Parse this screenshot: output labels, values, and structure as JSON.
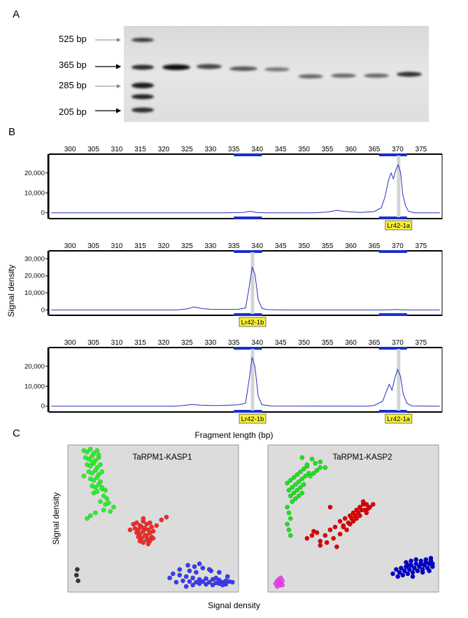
{
  "panel_a": {
    "letter": "A",
    "ladder_labels": [
      "525 bp",
      "365 bp",
      "285 bp",
      "205 bp"
    ]
  },
  "panel_b": {
    "letter": "B",
    "ylabel": "Signal density",
    "xlabel": "Fragment length (bp)",
    "peak_labels": {
      "a": "Lr42-1a",
      "b": "Lr42-1b"
    }
  },
  "panel_c": {
    "letter": "C",
    "ylabel": "Signal density",
    "xlabel": "Signal density",
    "plot1_title": "TaRPM1-KASP1",
    "plot2_title": "TaRPM1-KASP2"
  },
  "chart_data": [
    {
      "type": "line",
      "x_ticks": [
        300,
        305,
        310,
        315,
        320,
        325,
        330,
        335,
        340,
        345,
        350,
        355,
        360,
        365,
        370,
        375
      ],
      "xlim": [
        295.5,
        379.5
      ],
      "y_ticks": [
        0,
        10000,
        20000
      ],
      "y_tick_labels": [
        "0",
        "10,000",
        "20,000"
      ],
      "ylim": [
        -1500,
        28000
      ],
      "bins": [
        [
          335,
          341
        ],
        [
          366,
          372
        ]
      ],
      "highlight_x": [
        370.2
      ],
      "peak_label": "Lr42-1a",
      "peak_label_x": 370.2,
      "trace": [
        [
          296,
          0
        ],
        [
          333,
          0
        ],
        [
          337,
          150
        ],
        [
          338.5,
          800
        ],
        [
          340,
          150
        ],
        [
          342,
          0
        ],
        [
          352,
          0
        ],
        [
          355,
          400
        ],
        [
          357,
          1200
        ],
        [
          359,
          600
        ],
        [
          362,
          200
        ],
        [
          365,
          600
        ],
        [
          366.5,
          2500
        ],
        [
          367.3,
          8000
        ],
        [
          368,
          16000
        ],
        [
          368.6,
          20000
        ],
        [
          369.1,
          17000
        ],
        [
          369.6,
          21500
        ],
        [
          370.1,
          24000
        ],
        [
          370.6,
          20500
        ],
        [
          371.1,
          9000
        ],
        [
          371.7,
          3500
        ],
        [
          372.3,
          800
        ],
        [
          373.5,
          0
        ],
        [
          379,
          0
        ]
      ]
    },
    {
      "type": "line",
      "x_ticks": [
        300,
        305,
        310,
        315,
        320,
        325,
        330,
        335,
        340,
        345,
        350,
        355,
        360,
        365,
        370,
        375
      ],
      "xlim": [
        295.5,
        379.5
      ],
      "y_ticks": [
        0,
        10000,
        20000,
        30000
      ],
      "y_tick_labels": [
        "0",
        "10,000",
        "20,000",
        "30,000"
      ],
      "ylim": [
        -1500,
        33000
      ],
      "bins": [
        [
          335,
          341
        ],
        [
          366,
          372
        ]
      ],
      "highlight_x": [
        339
      ],
      "peak_label": "Lr42-1b",
      "peak_label_x": 339,
      "trace": [
        [
          296,
          0
        ],
        [
          323,
          0
        ],
        [
          325,
          600
        ],
        [
          326.5,
          1800
        ],
        [
          328,
          900
        ],
        [
          330,
          400
        ],
        [
          333,
          300
        ],
        [
          336,
          400
        ],
        [
          337.5,
          1200
        ],
        [
          338.2,
          12000
        ],
        [
          338.9,
          25000
        ],
        [
          339.5,
          21000
        ],
        [
          340.2,
          6000
        ],
        [
          341,
          1000
        ],
        [
          342,
          200
        ],
        [
          345,
          0
        ],
        [
          368,
          0
        ],
        [
          369.5,
          300
        ],
        [
          371,
          0
        ],
        [
          379,
          0
        ]
      ]
    },
    {
      "type": "line",
      "x_ticks": [
        300,
        305,
        310,
        315,
        320,
        325,
        330,
        335,
        340,
        345,
        350,
        355,
        360,
        365,
        370,
        375
      ],
      "xlim": [
        295.5,
        379.5
      ],
      "y_ticks": [
        0,
        10000,
        20000
      ],
      "y_tick_labels": [
        "0",
        "10,000",
        "20,000"
      ],
      "ylim": [
        -1500,
        28000
      ],
      "bins": [
        [
          335,
          341
        ],
        [
          366,
          372
        ]
      ],
      "highlight_x": [
        339,
        370.2
      ],
      "peak_labels": [
        "Lr42-1b",
        "Lr42-1a"
      ],
      "peak_label_xs": [
        339,
        370.2
      ],
      "trace": [
        [
          296,
          0
        ],
        [
          322,
          0
        ],
        [
          324,
          300
        ],
        [
          326,
          900
        ],
        [
          328,
          500
        ],
        [
          331,
          300
        ],
        [
          334,
          500
        ],
        [
          336,
          700
        ],
        [
          337.5,
          1500
        ],
        [
          338.3,
          14000
        ],
        [
          338.9,
          24500
        ],
        [
          339.5,
          20000
        ],
        [
          340.2,
          5000
        ],
        [
          341,
          800
        ],
        [
          343,
          100
        ],
        [
          363,
          0
        ],
        [
          365,
          400
        ],
        [
          366.8,
          2500
        ],
        [
          367.6,
          7500
        ],
        [
          368.2,
          11000
        ],
        [
          368.8,
          8000
        ],
        [
          369.4,
          14000
        ],
        [
          370,
          18500
        ],
        [
          370.6,
          15000
        ],
        [
          371.2,
          6000
        ],
        [
          372,
          1500
        ],
        [
          373,
          200
        ],
        [
          379,
          0
        ]
      ]
    },
    {
      "type": "scatter",
      "title": "TaRPM1-KASP1",
      "xlim": [
        0,
        1
      ],
      "ylim": [
        0,
        1
      ],
      "series": [
        {
          "color": "#2cee2c",
          "x": [
            0.08,
            0.1,
            0.12,
            0.14,
            0.16,
            0.09,
            0.11,
            0.13,
            0.15,
            0.17,
            0.1,
            0.12,
            0.14,
            0.16,
            0.18,
            0.11,
            0.13,
            0.15,
            0.17,
            0.19,
            0.12,
            0.14,
            0.16,
            0.18,
            0.13,
            0.15,
            0.17,
            0.19,
            0.14,
            0.16,
            0.2,
            0.22,
            0.18,
            0.21,
            0.23,
            0.26,
            0.2,
            0.24,
            0.12,
            0.15,
            0.1,
            0.08,
            0.13,
            0.17,
            0.19,
            0.21
          ],
          "y": [
            0.98,
            0.97,
            0.99,
            0.96,
            0.98,
            0.93,
            0.92,
            0.94,
            0.91,
            0.93,
            0.88,
            0.87,
            0.89,
            0.86,
            0.88,
            0.83,
            0.82,
            0.84,
            0.81,
            0.83,
            0.78,
            0.77,
            0.79,
            0.76,
            0.73,
            0.72,
            0.74,
            0.71,
            0.68,
            0.69,
            0.66,
            0.64,
            0.62,
            0.6,
            0.61,
            0.58,
            0.56,
            0.55,
            0.52,
            0.54,
            0.5,
            0.8,
            0.9,
            0.95,
            0.72,
            0.7
          ]
        },
        {
          "color": "#ee2c2c",
          "x": [
            0.38,
            0.4,
            0.42,
            0.44,
            0.46,
            0.48,
            0.39,
            0.41,
            0.43,
            0.45,
            0.47,
            0.49,
            0.4,
            0.42,
            0.44,
            0.46,
            0.48,
            0.5,
            0.41,
            0.43,
            0.45,
            0.47,
            0.49,
            0.42,
            0.44,
            0.46,
            0.48,
            0.52,
            0.55,
            0.58,
            0.36,
            0.44,
            0.47,
            0.5
          ],
          "y": [
            0.46,
            0.47,
            0.45,
            0.48,
            0.46,
            0.47,
            0.43,
            0.42,
            0.44,
            0.43,
            0.42,
            0.44,
            0.4,
            0.39,
            0.41,
            0.38,
            0.4,
            0.41,
            0.37,
            0.36,
            0.38,
            0.35,
            0.37,
            0.34,
            0.33,
            0.35,
            0.34,
            0.45,
            0.49,
            0.51,
            0.42,
            0.5,
            0.32,
            0.36
          ]
        },
        {
          "color": "#3a3aee",
          "x": [
            0.62,
            0.66,
            0.7,
            0.74,
            0.78,
            0.82,
            0.86,
            0.9,
            0.94,
            0.68,
            0.72,
            0.76,
            0.8,
            0.84,
            0.88,
            0.92,
            0.96,
            0.7,
            0.74,
            0.78,
            0.82,
            0.86,
            0.9,
            0.94,
            0.75,
            0.8,
            0.85,
            0.9,
            0.6,
            0.64,
            0.72,
            0.95,
            0.98,
            0.71,
            0.78,
            0.84,
            0.88,
            0.92,
            0.66,
            0.76
          ],
          "y": [
            0.11,
            0.1,
            0.09,
            0.08,
            0.07,
            0.075,
            0.07,
            0.065,
            0.06,
            0.06,
            0.055,
            0.05,
            0.055,
            0.05,
            0.045,
            0.05,
            0.055,
            0.02,
            0.03,
            0.04,
            0.035,
            0.03,
            0.04,
            0.035,
            0.16,
            0.15,
            0.13,
            0.12,
            0.08,
            0.05,
            0.13,
            0.09,
            0.05,
            0.17,
            0.18,
            0.14,
            0.08,
            0.03,
            0.14,
            0.12
          ]
        },
        {
          "color": "#333333",
          "x": [
            0.04,
            0.035,
            0.045
          ],
          "y": [
            0.14,
            0.1,
            0.06
          ]
        }
      ]
    },
    {
      "type": "scatter",
      "title": "TaRPM1-KASP2",
      "xlim": [
        0,
        1
      ],
      "ylim": [
        0,
        1
      ],
      "series": [
        {
          "color": "#22dd22",
          "x": [
            0.1,
            0.12,
            0.14,
            0.16,
            0.18,
            0.2,
            0.22,
            0.11,
            0.13,
            0.15,
            0.17,
            0.19,
            0.21,
            0.23,
            0.12,
            0.14,
            0.16,
            0.18,
            0.2,
            0.24,
            0.26,
            0.28,
            0.3,
            0.13,
            0.15,
            0.17,
            0.19,
            0.1,
            0.11,
            0.12,
            0.1,
            0.11,
            0.12,
            0.27,
            0.33,
            0.3,
            0.25,
            0.22,
            0.19
          ],
          "y": [
            0.75,
            0.77,
            0.79,
            0.81,
            0.83,
            0.85,
            0.87,
            0.7,
            0.72,
            0.74,
            0.76,
            0.78,
            0.8,
            0.82,
            0.66,
            0.68,
            0.7,
            0.72,
            0.74,
            0.8,
            0.82,
            0.84,
            0.86,
            0.62,
            0.64,
            0.66,
            0.68,
            0.58,
            0.54,
            0.5,
            0.46,
            0.42,
            0.38,
            0.89,
            0.86,
            0.9,
            0.92,
            0.88,
            0.93
          ]
        },
        {
          "color": "#dd0000",
          "x": [
            0.22,
            0.25,
            0.28,
            0.3,
            0.33,
            0.36,
            0.39,
            0.42,
            0.45,
            0.48,
            0.5,
            0.52,
            0.54,
            0.56,
            0.58,
            0.6,
            0.62,
            0.44,
            0.47,
            0.49,
            0.51,
            0.53,
            0.55,
            0.57,
            0.59,
            0.46,
            0.48,
            0.5,
            0.52,
            0.54,
            0.34,
            0.38,
            0.4,
            0.26,
            0.3,
            0.42,
            0.44,
            0.36,
            0.56,
            0.58
          ],
          "y": [
            0.36,
            0.38,
            0.4,
            0.34,
            0.38,
            0.42,
            0.44,
            0.48,
            0.5,
            0.52,
            0.54,
            0.56,
            0.58,
            0.6,
            0.6,
            0.58,
            0.6,
            0.45,
            0.47,
            0.5,
            0.52,
            0.54,
            0.56,
            0.56,
            0.57,
            0.42,
            0.46,
            0.48,
            0.5,
            0.52,
            0.33,
            0.36,
            0.3,
            0.41,
            0.31,
            0.39,
            0.44,
            0.58,
            0.62,
            0.54
          ]
        },
        {
          "color": "#0000cc",
          "x": [
            0.76,
            0.79,
            0.82,
            0.85,
            0.88,
            0.91,
            0.94,
            0.97,
            0.78,
            0.81,
            0.84,
            0.87,
            0.9,
            0.93,
            0.96,
            0.8,
            0.83,
            0.86,
            0.89,
            0.92,
            0.95,
            0.98,
            0.82,
            0.85,
            0.88,
            0.91,
            0.94,
            0.97,
            0.74,
            0.77,
            0.86,
            0.92,
            0.96,
            0.98,
            0.84
          ],
          "y": [
            0.14,
            0.15,
            0.16,
            0.17,
            0.18,
            0.18,
            0.19,
            0.2,
            0.12,
            0.13,
            0.14,
            0.15,
            0.16,
            0.17,
            0.18,
            0.1,
            0.11,
            0.12,
            0.13,
            0.14,
            0.15,
            0.16,
            0.19,
            0.2,
            0.21,
            0.2,
            0.21,
            0.22,
            0.11,
            0.09,
            0.09,
            0.12,
            0.13,
            0.18,
            0.17
          ]
        },
        {
          "color": "#ee44ee",
          "x": [
            0.04,
            0.05,
            0.06,
            0.07,
            0.05,
            0.06,
            0.04,
            0.03,
            0.07
          ],
          "y": [
            0.06,
            0.07,
            0.08,
            0.06,
            0.04,
            0.03,
            0.02,
            0.04,
            0.03
          ]
        }
      ]
    }
  ]
}
